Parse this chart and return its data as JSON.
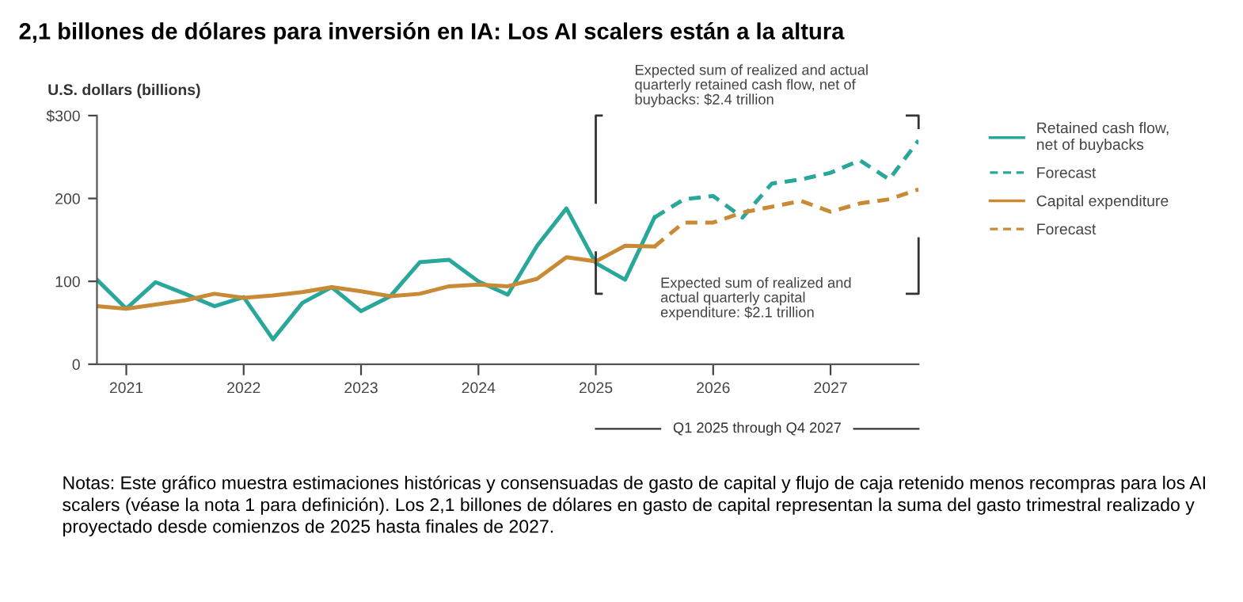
{
  "chart_data": {
    "type": "line",
    "title": "2,1 billones de dólares para inversión en IA: Los AI scalers están a la altura",
    "ylabel": "U.S. dollars (billions)",
    "xlim": [
      2020.75,
      2027.75
    ],
    "xticks": [
      2021,
      2022,
      2023,
      2024,
      2025,
      2026,
      2027
    ],
    "ylim": [
      0,
      300
    ],
    "yticks": [
      0,
      100,
      200,
      {
        "value": 300,
        "label": "$300"
      }
    ],
    "grid": false,
    "legend": "right",
    "marker": "none",
    "series": [
      {
        "name": "Retained cash flow,\nnet of buybacks",
        "color": "#2aa79b",
        "line_style": "solid",
        "x": [
          2020.75,
          2021,
          2021.25,
          2021.5,
          2021.75,
          2022,
          2022.25,
          2022.5,
          2022.75,
          2023,
          2023.25,
          2023.5,
          2023.75,
          2024,
          2024.25,
          2024.5,
          2024.75,
          2025,
          2025.25,
          2025.5
        ],
        "values": [
          102,
          67,
          99,
          85,
          70,
          81,
          30,
          74,
          93,
          64,
          82,
          123,
          126,
          100,
          84,
          143,
          188,
          122,
          102,
          177
        ]
      },
      {
        "name": "Forecast",
        "color": "#2aa79b",
        "line_style": "dashed",
        "x": [
          2025.5,
          2025.75,
          2026,
          2026.25,
          2026.5,
          2026.75,
          2027,
          2027.25,
          2027.5,
          2027.75
        ],
        "values": [
          177,
          199,
          203,
          177,
          218,
          223,
          231,
          246,
          223,
          270
        ]
      },
      {
        "name": "Capital expenditure",
        "color": "#c98a35",
        "line_style": "solid",
        "x": [
          2020.75,
          2021,
          2021.25,
          2021.5,
          2021.75,
          2022,
          2022.25,
          2022.5,
          2022.75,
          2023,
          2023.25,
          2023.5,
          2023.75,
          2024,
          2024.25,
          2024.5,
          2024.75,
          2025,
          2025.25,
          2025.5
        ],
        "values": [
          70,
          67,
          72,
          77,
          85,
          80,
          83,
          87,
          93,
          88,
          82,
          85,
          94,
          96,
          94,
          103,
          129,
          124,
          143,
          142
        ]
      },
      {
        "name": "Forecast",
        "color": "#c98a35",
        "line_style": "dashed",
        "x": [
          2025.5,
          2025.75,
          2026,
          2026.25,
          2026.5,
          2026.75,
          2027,
          2027.25,
          2027.5,
          2027.75
        ],
        "values": [
          142,
          171,
          171,
          183,
          190,
          197,
          184,
          194,
          199,
          211
        ]
      }
    ],
    "annotations": [
      "Expected sum of realized and actual\nquarterly retained cash flow, net of\nbuybacks: $2.4 trillion",
      "Expected sum of realized and\nactual quarterly capital\nexpenditure: $2.1 trillion",
      "Q1 2025 through Q4 2027",
      "Notas: Este gráfico muestra estimaciones históricas y consensuadas de gasto de capital y flujo de caja retenido menos recompras para los AI scalers (véase la nota 1 para definición). Los 2,1 billones de dólares en gasto de capital representan la suma del gasto trimestral realizado y proyectado desde comienzos de 2025 hasta finales de 2027."
    ]
  }
}
